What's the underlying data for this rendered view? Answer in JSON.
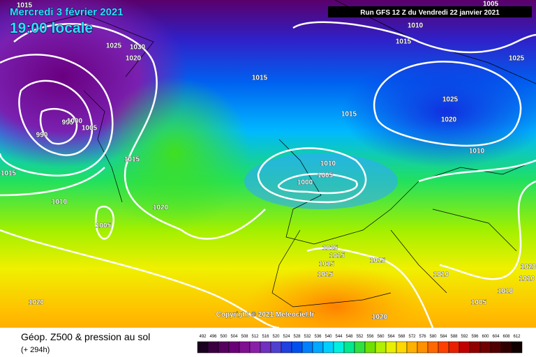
{
  "header": {
    "date": "Mercredi 3 février 2021",
    "time": "19:00 locale",
    "run": "Run GFS 12 Z du Vendredi 22 janvier 2021"
  },
  "copyright": "Copyright © 2021 Meteociel.fr",
  "footer": {
    "title": "Géop. Z500 & pression au sol",
    "lead": "(+ 294h)"
  },
  "isobar_labels": [
    "1015",
    "1005",
    "1010",
    "1015",
    "1025",
    "1030",
    "1020",
    "1025",
    "1015",
    "1015",
    "1025",
    "1020",
    "990",
    "995",
    "1000",
    "1005",
    "1015",
    "1015",
    "1010",
    "1005",
    "1000",
    "1010",
    "1010",
    "1020",
    "1005",
    "1015",
    "1015",
    "1015",
    "1015",
    "1015",
    "1020",
    "1010",
    "1010",
    "1010",
    "1005",
    "1020",
    "1020"
  ],
  "scale": {
    "values": [
      492,
      496,
      500,
      504,
      508,
      512,
      516,
      520,
      524,
      528,
      532,
      536,
      540,
      544,
      548,
      552,
      556,
      560,
      564,
      568,
      572,
      576,
      580,
      584,
      588,
      592,
      596,
      600,
      604,
      608,
      612
    ],
    "colors": [
      "#1a0020",
      "#3a0040",
      "#55005e",
      "#6a0078",
      "#7f1090",
      "#8a20a8",
      "#7030c0",
      "#5040d0",
      "#2040e0",
      "#0050f0",
      "#0080ff",
      "#00a8ff",
      "#00d0ff",
      "#00f0e0",
      "#00e890",
      "#30e040",
      "#70e000",
      "#b0f000",
      "#e8f000",
      "#ffd800",
      "#ffb000",
      "#ff9000",
      "#ff6800",
      "#ff4000",
      "#e82000",
      "#c00000",
      "#900000",
      "#700000",
      "#500000",
      "#300000",
      "#100000"
    ]
  }
}
